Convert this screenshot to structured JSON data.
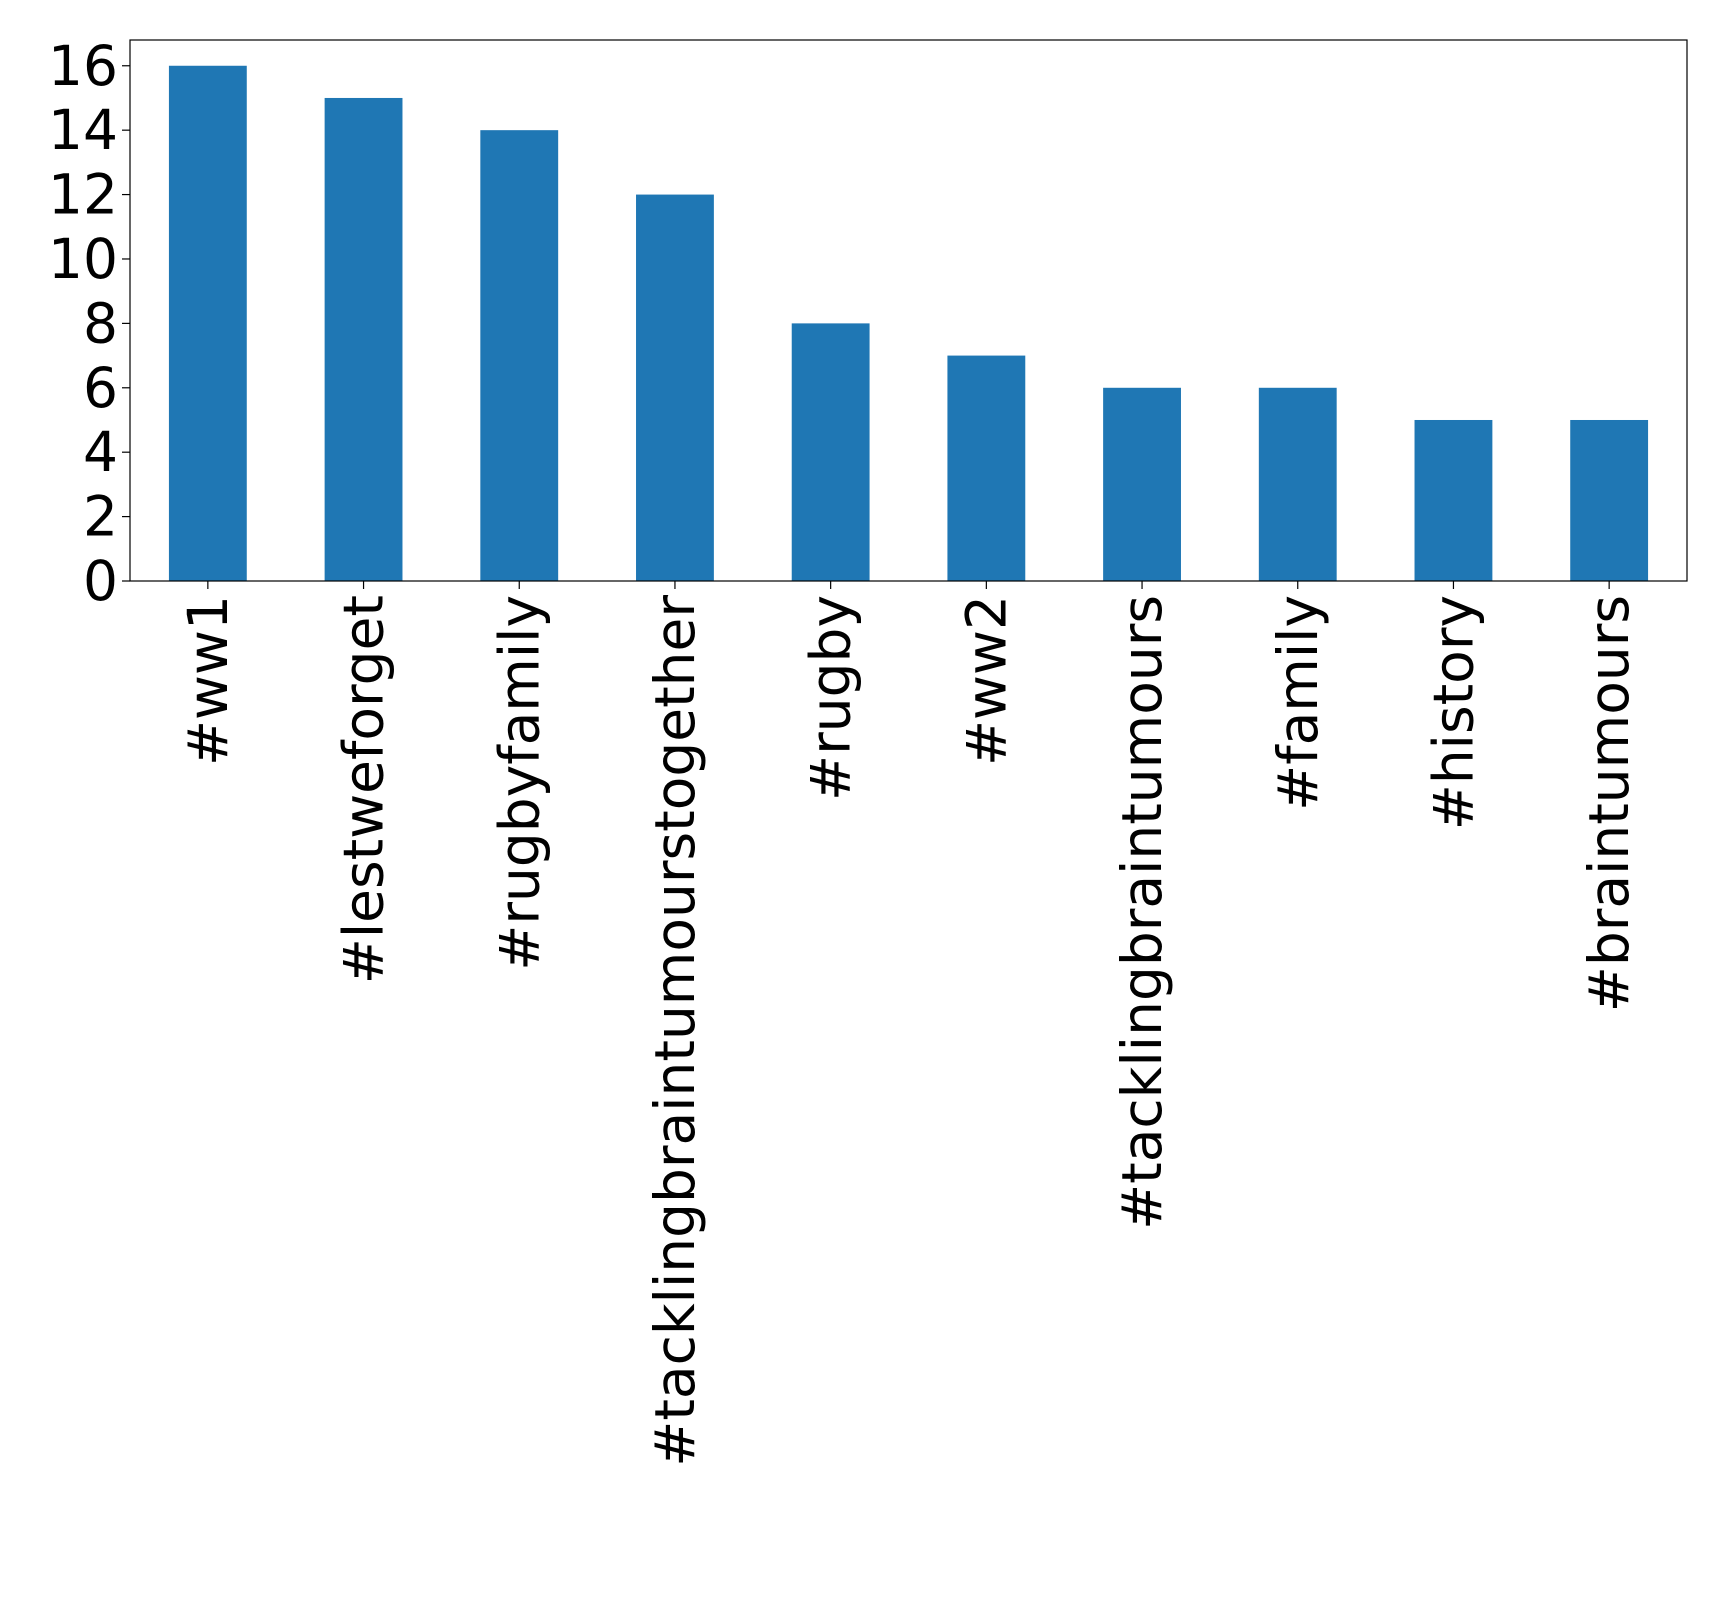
{
  "chart_data": {
    "type": "bar",
    "categories": [
      "#ww1",
      "#lestweforget",
      "#rugbyfamily",
      "#tacklingbraintumourstogether",
      "#rugby",
      "#ww2",
      "#tacklingbraintumours",
      "#family",
      "#history",
      "#braintumours"
    ],
    "values": [
      16,
      15,
      14,
      12,
      8,
      7,
      6,
      6,
      5,
      5
    ],
    "color": "#1f77b4",
    "ylim": [
      0,
      16.8
    ],
    "yticks": [
      0,
      2,
      4,
      6,
      8,
      10,
      12,
      14,
      16
    ],
    "grid": false
  }
}
